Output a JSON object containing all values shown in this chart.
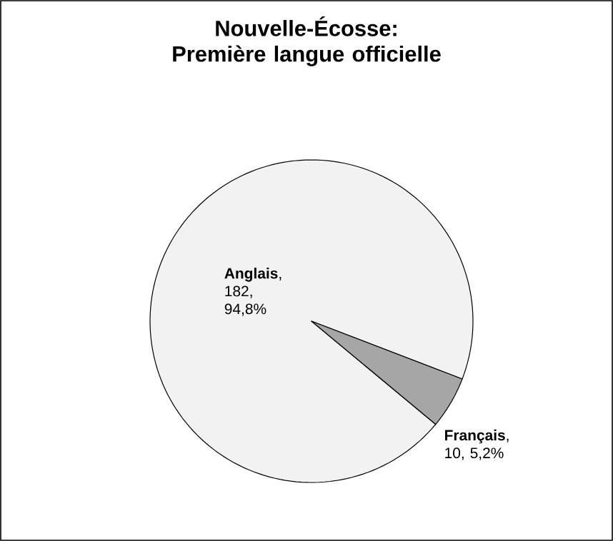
{
  "chart_data": {
    "type": "pie",
    "title": "Nouvelle-Écosse: Première langue officielle",
    "categories": [
      "Anglais",
      "Français"
    ],
    "values": [
      182,
      10
    ],
    "colors": [
      "#f2f2f2",
      "#a6a6a6"
    ],
    "value_labels": [
      ", 182, 94,8%",
      ", 10, 5,2%"
    ]
  }
}
